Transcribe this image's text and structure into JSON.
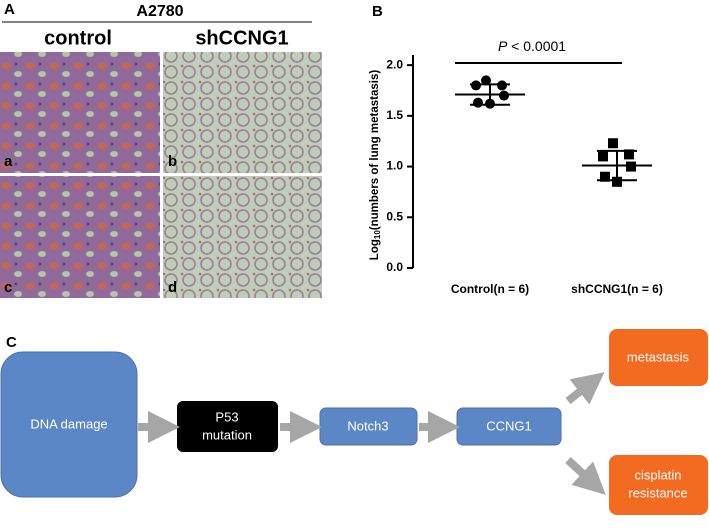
{
  "panels": {
    "a_label": "A",
    "b_label": "B",
    "c_label": "C"
  },
  "micrographs": {
    "title": "A2780",
    "columns": [
      "control",
      "shCCNG1"
    ],
    "tiles": [
      "a",
      "b",
      "c",
      "d"
    ]
  },
  "chart_data": {
    "type": "scatter",
    "ylabel_base": "Log",
    "ylabel_sub": "10",
    "ylabel_rest": "(numbers of lung metastasis)",
    "annotation_p": "P",
    "annotation_rest": "< 0.0001",
    "categories": [
      "Control(n = 6)",
      "shCCNG1(n = 6)"
    ],
    "points": [
      [
        1.85,
        1.8,
        1.8,
        1.7,
        1.63,
        1.62
      ],
      [
        1.23,
        1.12,
        1.1,
        1.0,
        0.9,
        0.85
      ]
    ],
    "means": [
      1.71,
      1.01
    ],
    "errors": [
      0.1,
      0.145
    ],
    "markers": [
      "circle",
      "square"
    ],
    "color": "#000000",
    "ylim": [
      0,
      2.1
    ],
    "yticks": [
      {
        "value": 0,
        "label": "0.0"
      },
      {
        "value": 0.5,
        "label": "0.5"
      },
      {
        "value": 1,
        "label": "1.0"
      },
      {
        "value": 1.5,
        "label": "1.5"
      },
      {
        "value": 2,
        "label": "2.0"
      }
    ]
  },
  "diagram": {
    "nodes": [
      {
        "lines": [
          "DNA damage"
        ]
      },
      {
        "lines": [
          "P53",
          "mutation"
        ]
      },
      {
        "lines": [
          "Notch3"
        ]
      },
      {
        "lines": [
          "CCNG1"
        ]
      },
      {
        "lines": [
          "metastasis"
        ]
      },
      {
        "lines": [
          "cisplatin",
          "resistance"
        ]
      }
    ]
  }
}
